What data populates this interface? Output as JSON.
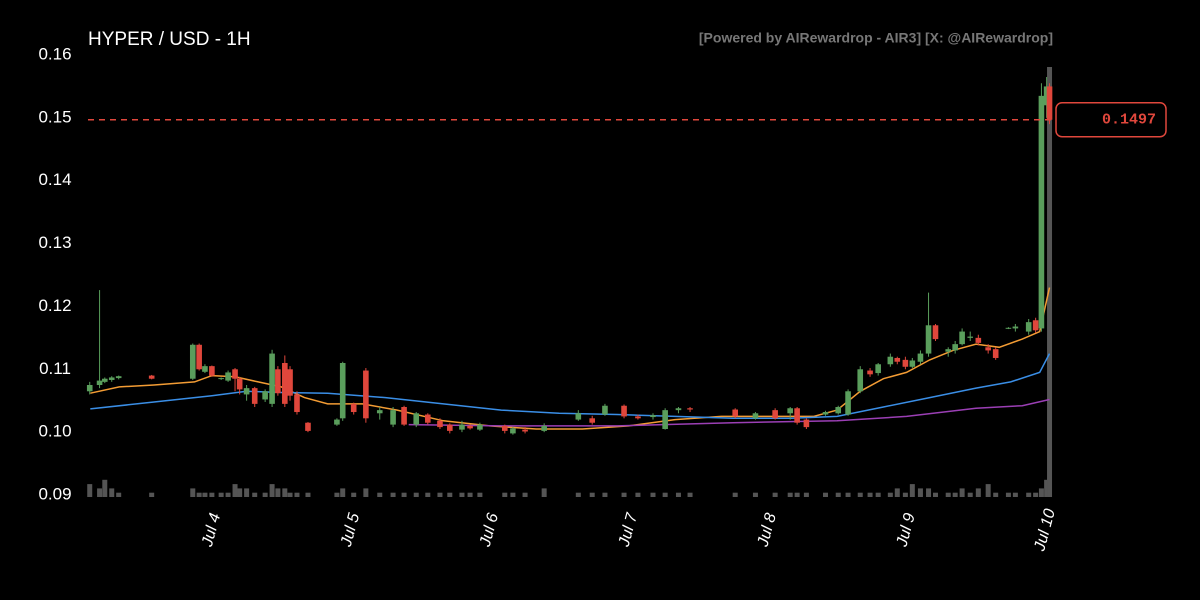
{
  "chart_data": {
    "type": "candlestick",
    "title": "HYPER / USD - 1H",
    "watermark": "[Powered by AIRewardrop - AIR3] [X: @AIRewardrop]",
    "up_color": "#5a9e5c",
    "down_color": "#e0473c",
    "volume_color": "#555555",
    "x": [
      -21.1,
      -19.4,
      -18.5,
      -17.3,
      -16.1,
      -10.4,
      -3.3,
      -2.2,
      -1.2,
      0,
      1.6,
      2.8,
      4,
      4.8,
      6,
      7.4,
      9.2,
      10.4,
      11.4,
      12.6,
      13.5,
      14.7,
      16.6,
      21.6,
      22.6,
      24.5,
      26.6,
      29,
      31.3,
      33.2,
      35.3,
      37.3,
      39.4,
      41.1,
      43.2,
      44.6,
      46.3,
      50.6,
      52,
      54.1,
      57.4,
      63.3,
      65.7,
      67.9,
      71.2,
      73.6,
      76.2,
      78.3,
      80.6,
      82.6,
      90.4,
      93.9,
      97.3,
      99.9,
      101.1,
      102.7,
      106,
      108.2,
      109.9,
      112,
      113.7,
      115.1,
      117.2,
      118.4,
      119.8,
      121,
      122.4,
      123.8,
      125,
      127.2,
      128.4,
      129.6,
      131,
      132.4,
      134.1,
      135.4,
      137.6,
      138.8,
      141.1,
      142.3,
      143.3,
      144.2,
      144.7
    ],
    "open": [
      0.1065,
      0.1075,
      0.108,
      0.1083,
      0.1086,
      0.109,
      0.1085,
      0.1139,
      0.1096,
      0.1105,
      0.1085,
      0.1082,
      0.11,
      0.1085,
      0.106,
      0.107,
      0.1052,
      0.1045,
      0.11,
      0.111,
      0.11,
      0.106,
      0.1015,
      0.1012,
      0.1022,
      0.1045,
      0.1098,
      0.103,
      0.1012,
      0.104,
      0.1012,
      0.1028,
      0.1018,
      0.1012,
      0.1004,
      0.101,
      0.1004,
      0.101,
      0.0998,
      0.1004,
      0.1002,
      0.102,
      0.1022,
      0.1028,
      0.1042,
      0.1025,
      0.1024,
      0.1005,
      0.1035,
      0.1038,
      0.1036,
      0.1022,
      0.1035,
      0.103,
      0.1038,
      0.102,
      0.1028,
      0.103,
      0.1028,
      0.1065,
      0.1098,
      0.1094,
      0.1108,
      0.1118,
      0.1115,
      0.1104,
      0.1112,
      0.1125,
      0.117,
      0.1128,
      0.113,
      0.114,
      0.115,
      0.115,
      0.1135,
      0.1132,
      0.1165,
      0.1165,
      0.116,
      0.1178,
      0.1165,
      0.152,
      0.155
    ],
    "high": [
      0.108,
      0.1226,
      0.1087,
      0.1089,
      0.109,
      0.1091,
      0.1141,
      0.1141,
      0.1108,
      0.1106,
      0.1087,
      0.1098,
      0.1102,
      0.1088,
      0.1075,
      0.1072,
      0.1068,
      0.1131,
      0.1105,
      0.1122,
      0.1105,
      0.1065,
      0.1016,
      0.1022,
      0.1112,
      0.1047,
      0.1102,
      0.104,
      0.104,
      0.1042,
      0.1032,
      0.103,
      0.1022,
      0.1014,
      0.1018,
      0.1012,
      0.1015,
      0.1012,
      0.1008,
      0.1008,
      0.1014,
      0.1035,
      0.1026,
      0.1045,
      0.1044,
      0.1028,
      0.103,
      0.1038,
      0.104,
      0.104,
      0.1038,
      0.1032,
      0.1038,
      0.104,
      0.104,
      0.1022,
      0.1034,
      0.1042,
      0.1068,
      0.1105,
      0.1102,
      0.111,
      0.1125,
      0.112,
      0.112,
      0.1118,
      0.113,
      0.1222,
      0.1172,
      0.1135,
      0.1145,
      0.1165,
      0.116,
      0.1155,
      0.114,
      0.1135,
      0.1167,
      0.1172,
      0.118,
      0.1182,
      0.1555,
      0.1565,
      0.1555
    ],
    "low": [
      0.106,
      0.107,
      0.1078,
      0.108,
      0.1084,
      0.1084,
      0.1083,
      0.1098,
      0.1094,
      0.1088,
      0.1083,
      0.108,
      0.1065,
      0.106,
      0.105,
      0.104,
      0.1048,
      0.104,
      0.1058,
      0.104,
      0.105,
      0.1028,
      0.1,
      0.101,
      0.1018,
      0.1028,
      0.1015,
      0.102,
      0.1008,
      0.101,
      0.1008,
      0.1012,
      0.1005,
      0.0998,
      0.1,
      0.1004,
      0.1002,
      0.0998,
      0.0996,
      0.0998,
      0.1,
      0.1018,
      0.1012,
      0.1026,
      0.1022,
      0.102,
      0.102,
      0.1004,
      0.103,
      0.1032,
      0.1022,
      0.102,
      0.102,
      0.102,
      0.1012,
      0.1005,
      0.1026,
      0.1028,
      0.1026,
      0.1062,
      0.1088,
      0.109,
      0.1104,
      0.1108,
      0.11,
      0.1102,
      0.1108,
      0.112,
      0.1145,
      0.112,
      0.1125,
      0.1138,
      0.1145,
      0.1138,
      0.1125,
      0.1115,
      0.1164,
      0.116,
      0.1155,
      0.1158,
      0.116,
      0.15,
      0.149
    ],
    "close": [
      0.1075,
      0.1082,
      0.1085,
      0.1087,
      0.1089,
      0.1085,
      0.1139,
      0.11,
      0.1105,
      0.109,
      0.1086,
      0.1095,
      0.1085,
      0.1068,
      0.107,
      0.1045,
      0.1065,
      0.1125,
      0.1062,
      0.1045,
      0.1058,
      0.1032,
      0.1002,
      0.102,
      0.111,
      0.1032,
      0.1022,
      0.1035,
      0.1035,
      0.1012,
      0.103,
      0.1015,
      0.1008,
      0.1002,
      0.1012,
      0.1006,
      0.1012,
      0.1002,
      0.1006,
      0.1001,
      0.101,
      0.103,
      0.1015,
      0.1042,
      0.1025,
      0.1022,
      0.1027,
      0.1035,
      0.1038,
      0.1036,
      0.1025,
      0.103,
      0.1022,
      0.1038,
      0.1015,
      0.1008,
      0.1032,
      0.104,
      0.1065,
      0.11,
      0.1092,
      0.1108,
      0.112,
      0.1112,
      0.1104,
      0.1114,
      0.1125,
      0.117,
      0.1148,
      0.1132,
      0.114,
      0.116,
      0.1152,
      0.1142,
      0.113,
      0.1118,
      0.1166,
      0.1168,
      0.1175,
      0.1162,
      0.1535,
      0.155,
      0.1497
    ],
    "volume": [
      3,
      2,
      4,
      2,
      1,
      1,
      2,
      1,
      1,
      1,
      1,
      1,
      3,
      2,
      2,
      1,
      1,
      3,
      2,
      2,
      1,
      1,
      1,
      1,
      2,
      1,
      2,
      1,
      1,
      1,
      1,
      1,
      1,
      1,
      1,
      1,
      1,
      1,
      1,
      1,
      2,
      1,
      1,
      1,
      1,
      1,
      1,
      1,
      1,
      1,
      1,
      1,
      1,
      1,
      1,
      1,
      1,
      1,
      1,
      1,
      1,
      1,
      1,
      2,
      1,
      3,
      2,
      2,
      1,
      1,
      1,
      2,
      1,
      2,
      3,
      1,
      1,
      1,
      1,
      1,
      2,
      4,
      100
    ],
    "lines": [
      {
        "color": "#f39c34",
        "x": [
          -21,
          -16,
          -10,
          -3,
          0,
          4,
          8,
          12,
          16,
          20,
          26,
          32,
          40,
          48,
          56,
          64,
          72,
          80,
          88,
          96,
          104,
          108,
          112,
          116,
          120,
          124,
          128,
          132,
          136,
          140,
          143,
          144.7
        ],
        "values": [
          0.1062,
          0.1072,
          0.1075,
          0.108,
          0.109,
          0.1088,
          0.108,
          0.1072,
          0.1055,
          0.1045,
          0.1045,
          0.1035,
          0.1018,
          0.101,
          0.1005,
          0.1005,
          0.101,
          0.102,
          0.1025,
          0.1025,
          0.1025,
          0.1035,
          0.1065,
          0.1085,
          0.1095,
          0.1115,
          0.113,
          0.114,
          0.1135,
          0.1148,
          0.116,
          0.123
        ]
      },
      {
        "color": "#3a8ee6",
        "x": [
          -21,
          -10,
          0,
          6,
          12,
          20,
          30,
          40,
          50,
          60,
          70,
          80,
          90,
          100,
          108,
          116,
          124,
          132,
          138,
          143,
          144.7
        ],
        "values": [
          0.1037,
          0.1048,
          0.1058,
          0.1065,
          0.1063,
          0.1062,
          0.1055,
          0.1045,
          0.1035,
          0.103,
          0.1028,
          0.1025,
          0.1022,
          0.1022,
          0.1025,
          0.104,
          0.1055,
          0.107,
          0.108,
          0.1095,
          0.1125
        ]
      },
      {
        "color": "#9b3fb5",
        "x": [
          34,
          50,
          70,
          90,
          108,
          120,
          132,
          140,
          144.7
        ],
        "values": [
          0.1012,
          0.101,
          0.101,
          0.1015,
          0.1018,
          0.1025,
          0.1038,
          0.1042,
          0.1052
        ]
      }
    ],
    "last_price": 0.1497,
    "last_price_color": "#e0473c",
    "xlim": [
      -21.4,
      145.3
    ],
    "ylim": [
      0.09,
      0.16
    ],
    "xticks": [
      {
        "value": 0,
        "label": "Jul 4"
      },
      {
        "value": 24,
        "label": "Jul 5"
      },
      {
        "value": 48,
        "label": "Jul 6"
      },
      {
        "value": 72,
        "label": "Jul 7"
      },
      {
        "value": 96,
        "label": "Jul 8"
      },
      {
        "value": 120,
        "label": "Jul 9"
      },
      {
        "value": 144,
        "label": "Jul 10"
      }
    ],
    "yticks": [
      0.09,
      {
        "value": 0.1,
        "label": "0.10"
      },
      0.11,
      0.12,
      0.13,
      0.14,
      0.15,
      0.16
    ]
  }
}
